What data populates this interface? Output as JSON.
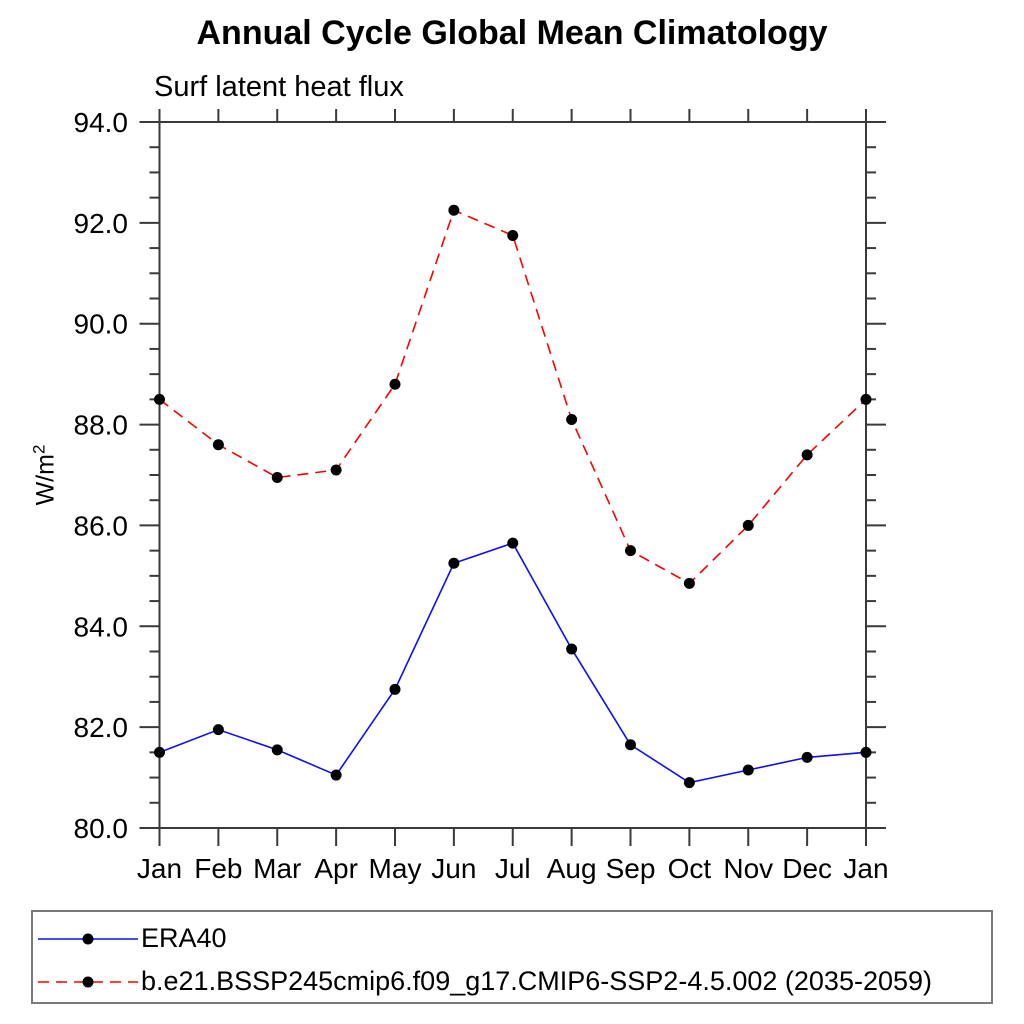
{
  "title": "Annual Cycle Global Mean Climatology",
  "subtitle": "Surf latent heat flux",
  "chart_data": {
    "type": "line",
    "x_categories": [
      "Jan",
      "Feb",
      "Mar",
      "Apr",
      "May",
      "Jun",
      "Jul",
      "Aug",
      "Sep",
      "Oct",
      "Nov",
      "Dec",
      "Jan"
    ],
    "ylabel": "W/m",
    "ylabel_sup": "2",
    "ylim": [
      80.0,
      94.0
    ],
    "ytick_major": 2.0,
    "ytick_minor": 0.5,
    "ytick_labels": [
      "80.0",
      "82.0",
      "84.0",
      "86.0",
      "88.0",
      "90.0",
      "92.0",
      "94.0"
    ],
    "grid": false,
    "legend_position": "bottom-left-box",
    "marker": "filled-circle",
    "marker_color": "#000000",
    "series": [
      {
        "name": "ERA40",
        "color": "#0d0dff",
        "line_style": "solid",
        "values": [
          81.5,
          81.95,
          81.55,
          81.05,
          82.75,
          85.25,
          85.65,
          83.55,
          81.65,
          80.9,
          81.15,
          81.4,
          81.5
        ]
      },
      {
        "name": "b.e21.BSSP245cmip6.f09_g17.CMIP6-SSP2-4.5.002 (2035-2059)",
        "color": "#ff0000",
        "line_style": "dashed",
        "values": [
          88.5,
          87.6,
          86.95,
          87.1,
          88.8,
          92.25,
          91.75,
          88.1,
          85.5,
          84.85,
          86.0,
          87.4,
          88.5
        ]
      }
    ]
  }
}
